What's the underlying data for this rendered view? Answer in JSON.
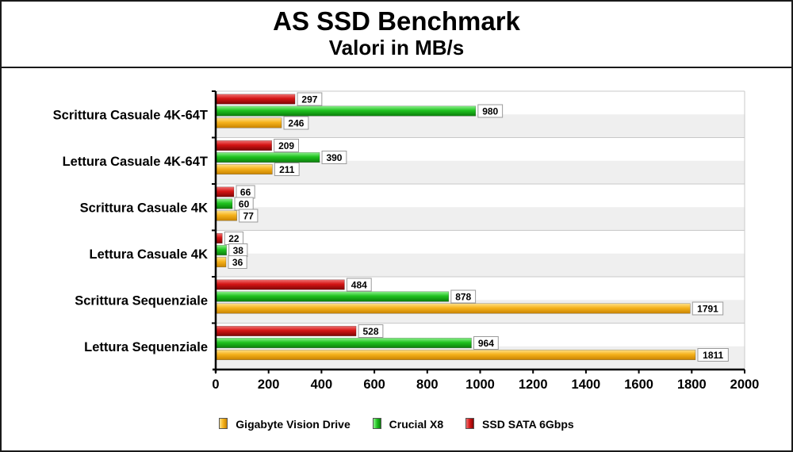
{
  "header": {
    "title": "AS SSD Benchmark",
    "subtitle": "Valori in MB/s"
  },
  "colors": {
    "gigabyte": "#f5b21c",
    "crucial": "#1fc21f",
    "sata": "#d41414"
  },
  "chart_data": {
    "type": "bar",
    "orientation": "horizontal",
    "categories": [
      "Scrittura Casuale 4K-64T",
      "Lettura Casuale 4K-64T",
      "Scrittura Casuale 4K",
      "Lettura Casuale 4K",
      "Scrittura Sequenziale",
      "Lettura Sequenziale"
    ],
    "series": [
      {
        "name": "SSD SATA 6Gbps",
        "values": [
          297,
          209,
          66,
          22,
          484,
          528
        ]
      },
      {
        "name": "Crucial X8",
        "values": [
          980,
          390,
          60,
          38,
          878,
          964
        ]
      },
      {
        "name": "Gigabyte Vision Drive",
        "values": [
          246,
          211,
          77,
          36,
          1791,
          1811
        ]
      }
    ],
    "legend_order": [
      "Gigabyte Vision Drive",
      "Crucial X8",
      "SSD SATA 6Gbps"
    ],
    "xlim": [
      0,
      2000
    ],
    "xticks": [
      "0",
      "200",
      "400",
      "600",
      "800",
      "1000",
      "1200",
      "1400",
      "1600",
      "1800",
      "2000"
    ],
    "legend_position": "bottom",
    "grid": true
  }
}
